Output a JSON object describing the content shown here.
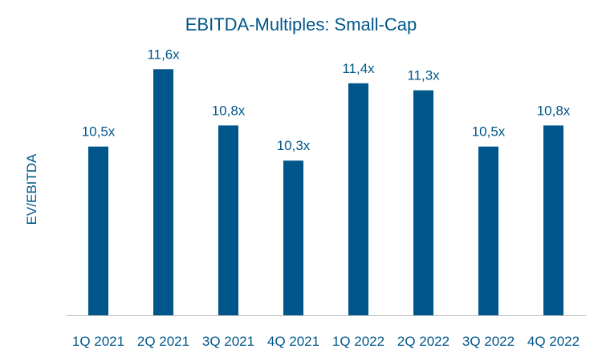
{
  "colors": {
    "accent": "#00568a",
    "axis": "#bfbfbf"
  },
  "chart_data": {
    "type": "bar",
    "title": "EBITDA-Multiples: Small-Cap",
    "xlabel": "",
    "ylabel": "EV/EBITDA",
    "categories": [
      "1Q 2021",
      "2Q 2021",
      "3Q 2021",
      "4Q 2021",
      "1Q 2022",
      "2Q 2022",
      "3Q 2022",
      "4Q 2022"
    ],
    "values": [
      10.5,
      11.6,
      10.8,
      10.3,
      11.4,
      11.3,
      10.5,
      10.8
    ],
    "data_labels": [
      "10,5x",
      "11,6x",
      "10,8x",
      "10,3x",
      "11,4x",
      "11,3x",
      "10,5x",
      "10,8x"
    ],
    "ylim": [
      8.1,
      11.9
    ],
    "grid": false,
    "legend": "none"
  }
}
